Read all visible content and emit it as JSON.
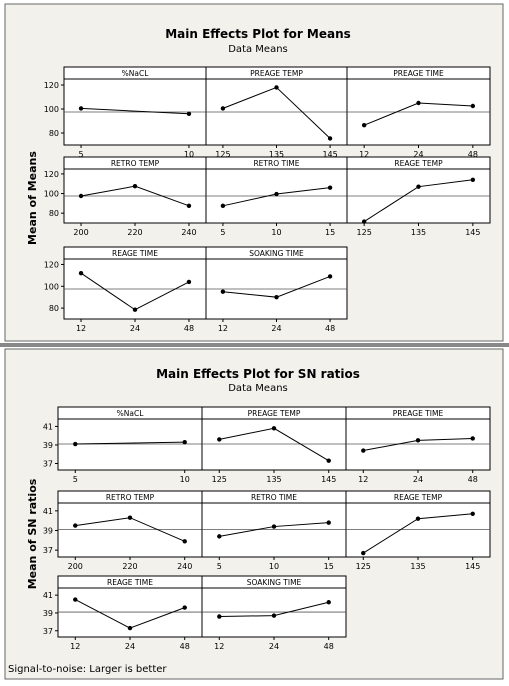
{
  "charts": [
    {
      "title": "Main Effects Plot for Means",
      "subtitle": "Data Means",
      "ylabel": "Mean of Means",
      "footer": "",
      "yticks": [
        "80",
        "100",
        "120"
      ]
    },
    {
      "title": "Main Effects Plot for SN ratios",
      "subtitle": "Data Means",
      "ylabel": "Mean of SN ratios",
      "footer": "Signal-to-noise: Larger is better",
      "yticks": [
        "37",
        "39",
        "41"
      ]
    }
  ],
  "chart_data": [
    {
      "type": "line",
      "title": "Main Effects Plot for Means",
      "subtitle": "Data Means",
      "ylabel": "Mean of Means",
      "ylim": [
        70,
        125
      ],
      "yticks": [
        80,
        100,
        120
      ],
      "reference_line": 97.5,
      "panels": [
        {
          "label": "%NaCL",
          "categories": [
            "5",
            "10"
          ],
          "values": [
            100.5,
            96
          ]
        },
        {
          "label": "PREAGE TEMP",
          "categories": [
            "125",
            "135",
            "145"
          ],
          "values": [
            100.5,
            118,
            75.5
          ]
        },
        {
          "label": "PREAGE TIME",
          "categories": [
            "12",
            "24",
            "48"
          ],
          "values": [
            86.5,
            105,
            102.5
          ]
        },
        {
          "label": "RETRO TEMP",
          "categories": [
            "200",
            "220",
            "240"
          ],
          "values": [
            97.5,
            107.5,
            87.5
          ]
        },
        {
          "label": "RETRO TIME",
          "categories": [
            "5",
            "10",
            "15"
          ],
          "values": [
            87.5,
            99.5,
            106
          ]
        },
        {
          "label": "REAGE TEMP",
          "categories": [
            "125",
            "135",
            "145"
          ],
          "values": [
            71.5,
            107,
            114
          ]
        },
        {
          "label": "REAGE TIME",
          "categories": [
            "12",
            "24",
            "48"
          ],
          "values": [
            112,
            78.5,
            104
          ]
        },
        {
          "label": "SOAKING TIME",
          "categories": [
            "12",
            "24",
            "48"
          ],
          "values": [
            95,
            90,
            109
          ]
        }
      ]
    },
    {
      "type": "line",
      "title": "Main Effects Plot for SN ratios",
      "subtitle": "Data Means",
      "ylabel": "Mean of SN ratios",
      "ylim": [
        36.3,
        41.8
      ],
      "yticks": [
        37,
        39,
        41
      ],
      "reference_line": 39.1,
      "panels": [
        {
          "label": "%NaCL",
          "categories": [
            "5",
            "10"
          ],
          "values": [
            39.1,
            39.3
          ]
        },
        {
          "label": "PREAGE TEMP",
          "categories": [
            "125",
            "135",
            "145"
          ],
          "values": [
            39.6,
            40.8,
            37.3
          ]
        },
        {
          "label": "PREAGE TIME",
          "categories": [
            "12",
            "24",
            "48"
          ],
          "values": [
            38.4,
            39.5,
            39.7
          ]
        },
        {
          "label": "RETRO TEMP",
          "categories": [
            "200",
            "220",
            "240"
          ],
          "values": [
            39.5,
            40.3,
            37.9
          ]
        },
        {
          "label": "RETRO TIME",
          "categories": [
            "5",
            "10",
            "15"
          ],
          "values": [
            38.4,
            39.4,
            39.8
          ]
        },
        {
          "label": "REAGE TEMP",
          "categories": [
            "125",
            "135",
            "145"
          ],
          "values": [
            36.7,
            40.2,
            40.7
          ]
        },
        {
          "label": "REAGE TIME",
          "categories": [
            "12",
            "24",
            "48"
          ],
          "values": [
            40.5,
            37.3,
            39.6
          ]
        },
        {
          "label": "SOAKING TIME",
          "categories": [
            "12",
            "24",
            "48"
          ],
          "values": [
            38.6,
            38.7,
            40.2
          ]
        }
      ]
    }
  ]
}
